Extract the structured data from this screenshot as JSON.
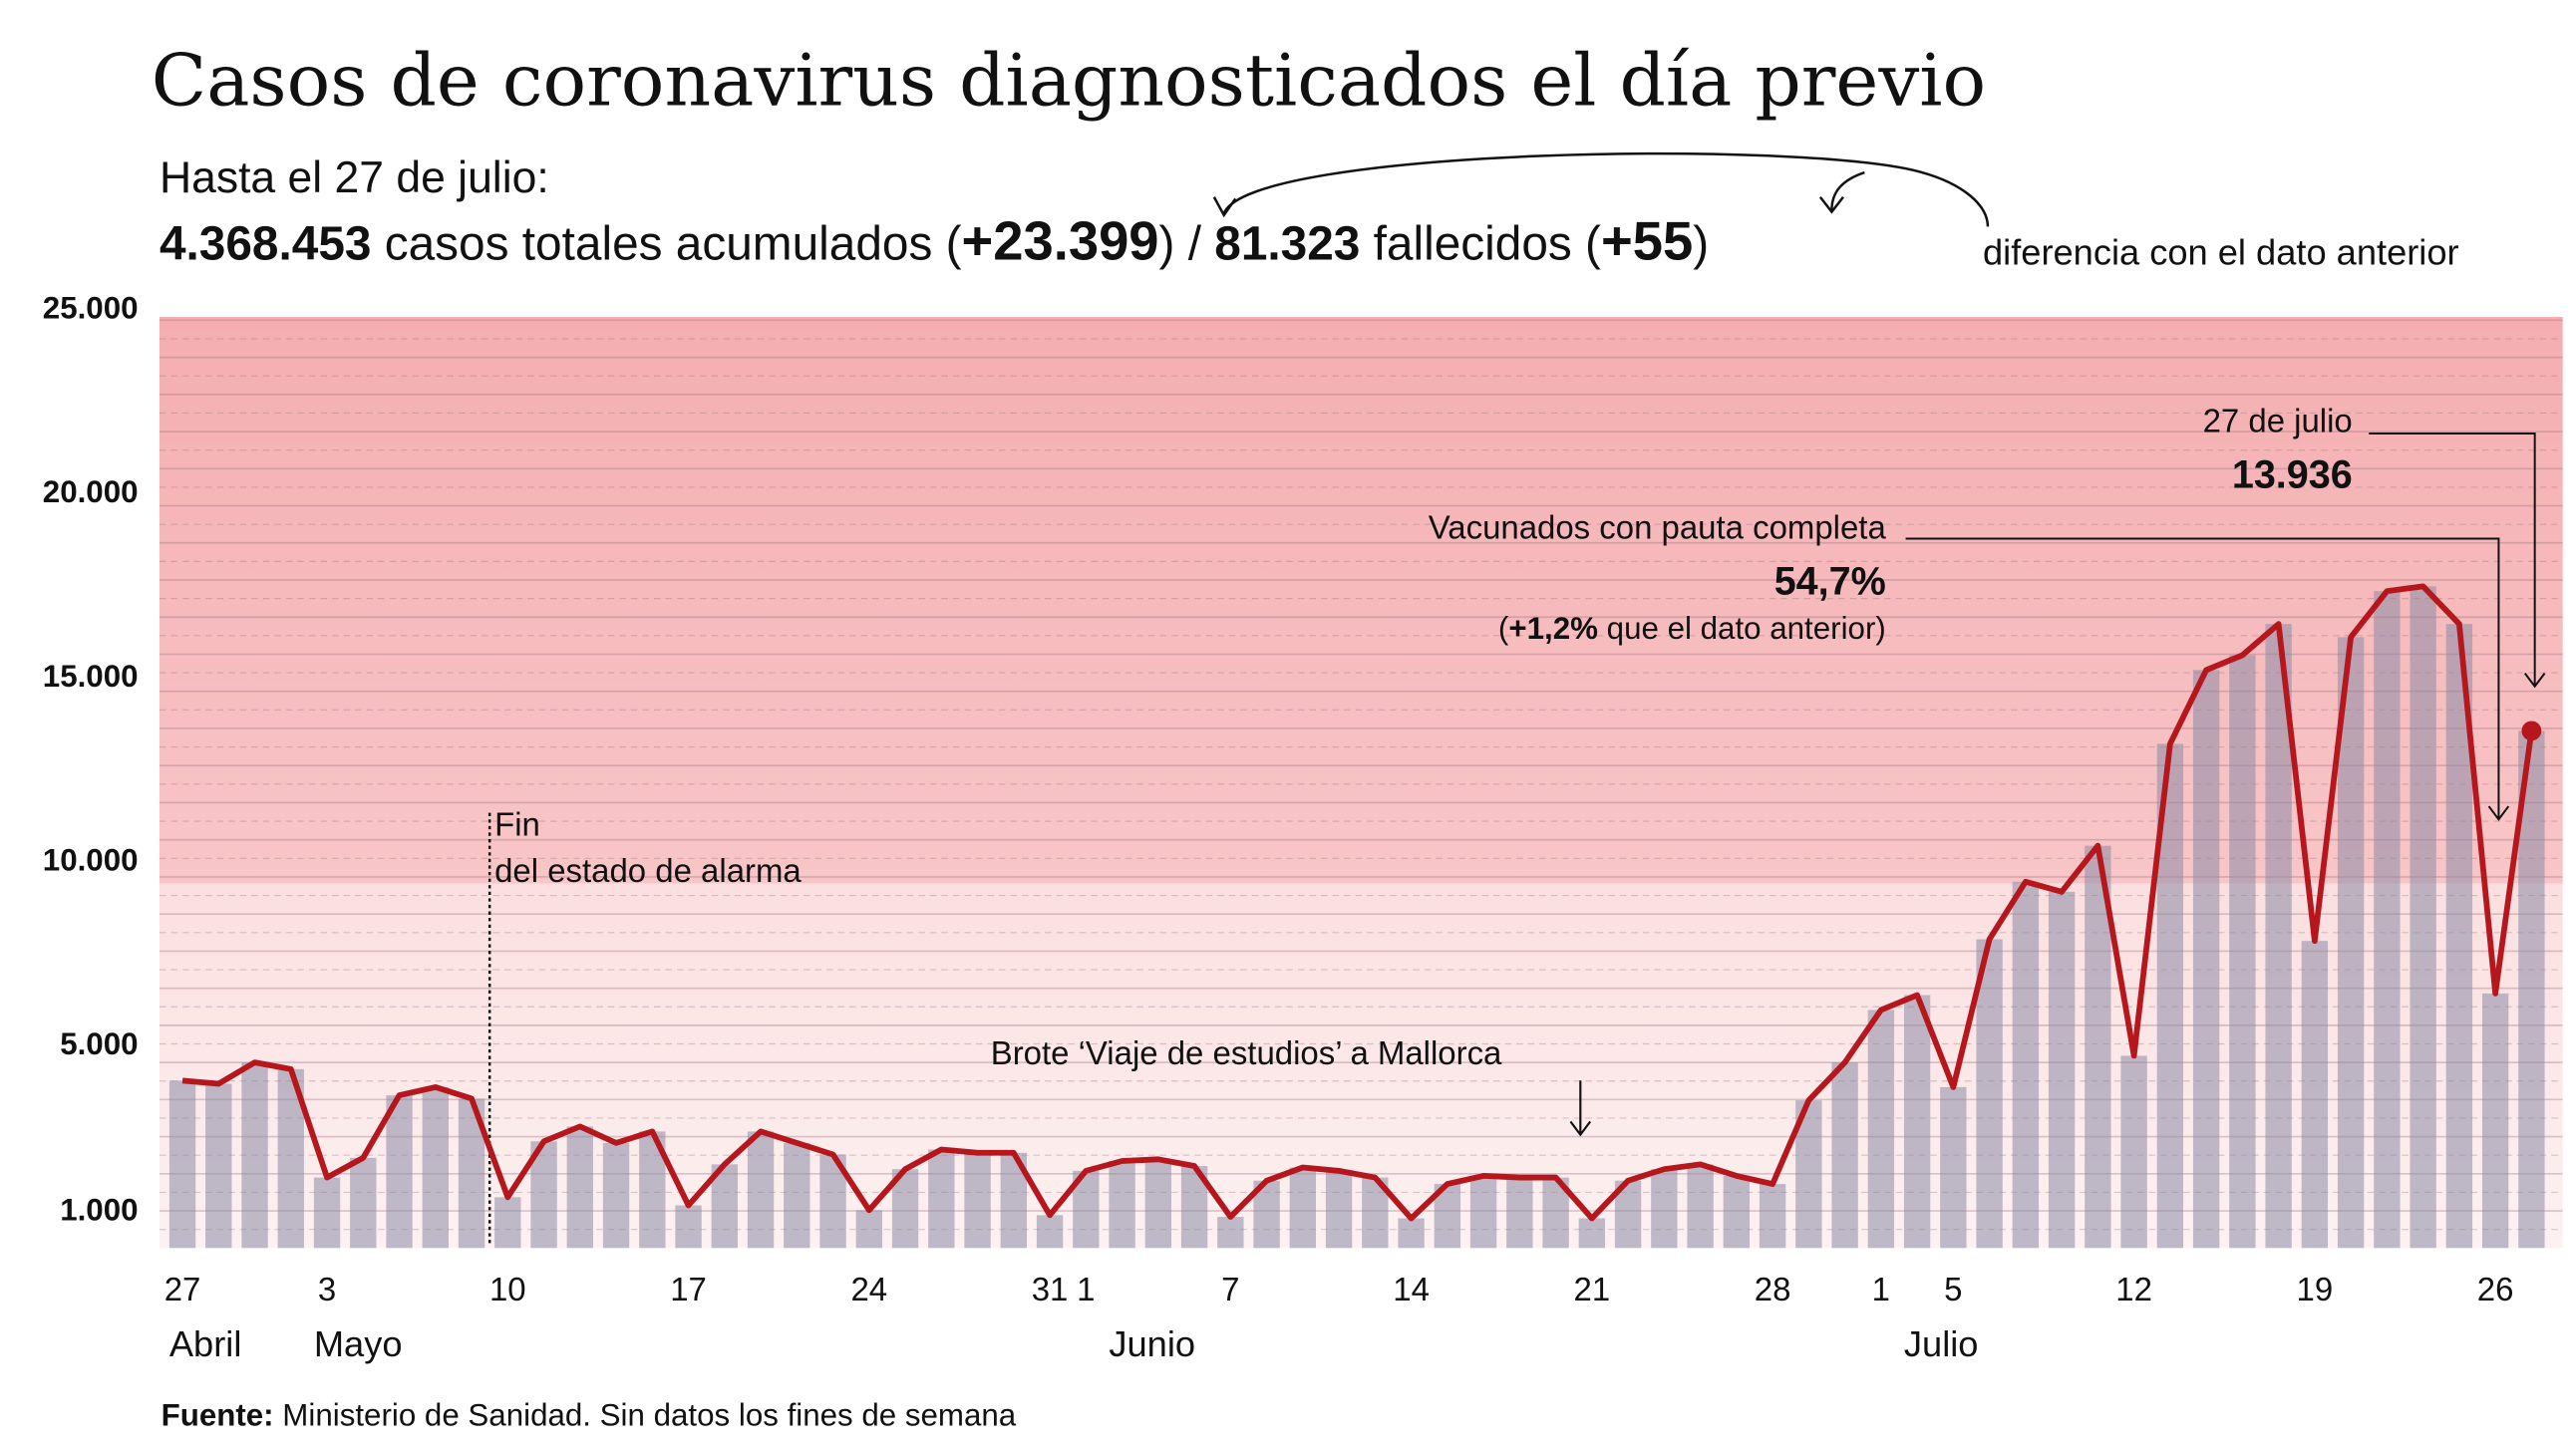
{
  "title": "Casos de coronavirus diagnosticados el día previo",
  "subtitle": {
    "line1": "Hasta el 27 de julio:",
    "total_cases": "4.368.453",
    "total_cases_text": " casos totales acumulados (",
    "cases_diff": "+23.399",
    "sep": ") / ",
    "deaths": "81.323",
    "deaths_text": " fallecidos (",
    "deaths_diff": "+55",
    "close": ")",
    "diff_note": "diferencia con el dato anterior"
  },
  "annotations": {
    "alarm_line1": "Fin",
    "alarm_line2": "del estado de alarma",
    "outbreak": "Brote ‘Viaje de estudios’ a Mallorca",
    "last_date": "27 de julio",
    "last_value": "13.936",
    "vaccinated_label": "Vacunados con pauta completa",
    "vaccinated_value": "54,7%",
    "vaccinated_diff_open": "(",
    "vaccinated_diff": "+1,2%",
    "vaccinated_diff_text": " que el dato anterior)"
  },
  "source": {
    "label": "Fuente:",
    "text": " Ministerio de Sanidad. Sin datos los fines de semana"
  },
  "colors": {
    "line": "#b5171c",
    "bars": "#8a8aa6",
    "band_high": "#f4aeb1",
    "band_mid": "#fbdfe0",
    "band_low": "#fdf1f1"
  },
  "chart_data": {
    "type": "bar+line",
    "ylim": [
      0,
      25000
    ],
    "ytick_labels": [
      "25.000",
      "20.000",
      "15.000",
      "10.000",
      "5.000",
      "1.000"
    ],
    "yticks": [
      25000,
      20000,
      15000,
      10000,
      5000,
      1000
    ],
    "xtick_labels": [
      {
        "label": "27",
        "index": 0
      },
      {
        "label": "3",
        "index": 4
      },
      {
        "label": "10",
        "index": 9
      },
      {
        "label": "17",
        "index": 14
      },
      {
        "label": "24",
        "index": 19
      },
      {
        "label": "31",
        "index": 24
      },
      {
        "label": "1",
        "index": 25
      },
      {
        "label": "7",
        "index": 29
      },
      {
        "label": "14",
        "index": 34
      },
      {
        "label": "21",
        "index": 39
      },
      {
        "label": "28",
        "index": 44
      },
      {
        "label": "1",
        "index": 47
      },
      {
        "label": "5",
        "index": 49
      },
      {
        "label": "12",
        "index": 54
      },
      {
        "label": "19",
        "index": 59
      },
      {
        "label": "26",
        "index": 64
      }
    ],
    "month_labels": [
      {
        "label": "Abril",
        "index": 0
      },
      {
        "label": "Mayo",
        "index": 4
      },
      {
        "label": "Junio",
        "index": 26
      },
      {
        "label": "Julio",
        "index": 48
      }
    ],
    "values": [
      4510,
      4425,
      5000,
      4820,
      1900,
      2430,
      4115,
      4335,
      4025,
      1370,
      2875,
      3275,
      2830,
      3140,
      1150,
      2255,
      3140,
      2830,
      2520,
      1020,
      2125,
      2655,
      2565,
      2565,
      885,
      2080,
      2345,
      2390,
      2210,
      840,
      1815,
      2170,
      2080,
      1900,
      800,
      1725,
      1945,
      1900,
      1900,
      800,
      1815,
      2125,
      2255,
      1945,
      1725,
      3980,
      5000,
      6415,
      6815,
      4335,
      8320,
      9870,
      9600,
      10840,
      5180,
      13585,
      15575,
      15975,
      16815,
      8275,
      16460,
      17700,
      17830,
      16815,
      6860,
      13936
    ],
    "grid": true
  }
}
